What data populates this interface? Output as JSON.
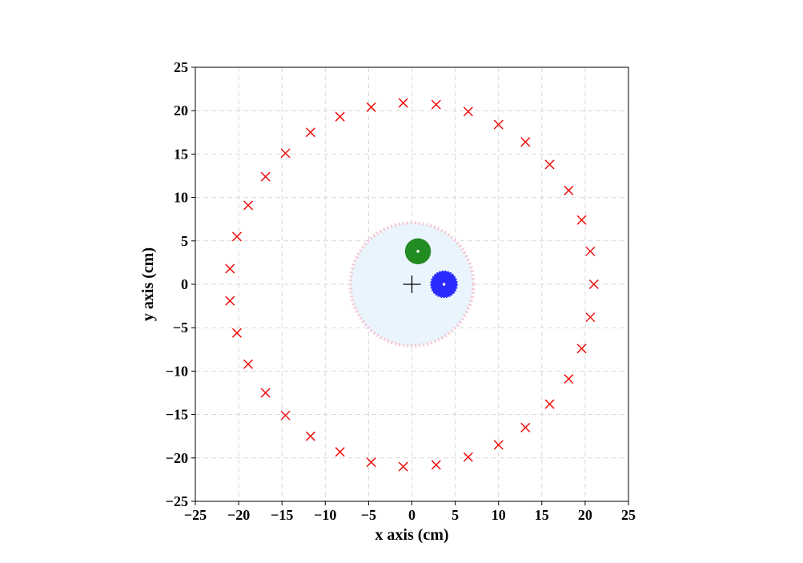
{
  "chart_data": {
    "type": "scatter",
    "title": "",
    "xlabel": "x axis (cm)",
    "ylabel": "y axis (cm)",
    "xlim": [
      -25,
      25
    ],
    "ylim": [
      -25,
      25
    ],
    "xticks": [
      -25,
      -20,
      -15,
      -10,
      -5,
      0,
      5,
      10,
      15,
      20,
      25
    ],
    "yticks": [
      -25,
      -20,
      -15,
      -10,
      -5,
      0,
      5,
      10,
      15,
      20,
      25
    ],
    "grid": true,
    "colors": {
      "markers": "#ee0000",
      "boundary_fill": "#eaf4fd",
      "boundary_edge": "#f7c6d0",
      "green_disc": "#228b22",
      "blue_disc": "#2a2aff",
      "center_marker": "#000000",
      "grid": "#d9d9d9"
    },
    "marker_points": [
      {
        "x": 21.0,
        "y": 0.0
      },
      {
        "x": 20.6,
        "y": 3.8
      },
      {
        "x": 19.6,
        "y": 7.4
      },
      {
        "x": 18.1,
        "y": 10.8
      },
      {
        "x": 15.9,
        "y": 13.8
      },
      {
        "x": 13.1,
        "y": 16.4
      },
      {
        "x": 10.0,
        "y": 18.4
      },
      {
        "x": 6.5,
        "y": 19.9
      },
      {
        "x": 2.8,
        "y": 20.7
      },
      {
        "x": -1.0,
        "y": 20.9
      },
      {
        "x": -4.7,
        "y": 20.4
      },
      {
        "x": -8.3,
        "y": 19.3
      },
      {
        "x": -11.7,
        "y": 17.5
      },
      {
        "x": -14.6,
        "y": 15.1
      },
      {
        "x": -16.9,
        "y": 12.4
      },
      {
        "x": -18.9,
        "y": 9.1
      },
      {
        "x": -20.2,
        "y": 5.5
      },
      {
        "x": -21.0,
        "y": 1.8
      },
      {
        "x": -21.0,
        "y": -1.9
      },
      {
        "x": -20.2,
        "y": -5.6
      },
      {
        "x": -18.9,
        "y": -9.2
      },
      {
        "x": -16.9,
        "y": -12.5
      },
      {
        "x": -14.6,
        "y": -15.1
      },
      {
        "x": -11.7,
        "y": -17.5
      },
      {
        "x": -8.3,
        "y": -19.3
      },
      {
        "x": -4.7,
        "y": -20.5
      },
      {
        "x": -1.0,
        "y": -21.0
      },
      {
        "x": 2.8,
        "y": -20.8
      },
      {
        "x": 6.5,
        "y": -19.9
      },
      {
        "x": 10.0,
        "y": -18.5
      },
      {
        "x": 13.1,
        "y": -16.5
      },
      {
        "x": 15.9,
        "y": -13.8
      },
      {
        "x": 18.1,
        "y": -10.9
      },
      {
        "x": 19.6,
        "y": -7.4
      },
      {
        "x": 20.6,
        "y": -3.8
      }
    ],
    "boundary_circle": {
      "cx": 0,
      "cy": 0,
      "r": 7.1
    },
    "green_disc": {
      "x": 0.7,
      "y": 3.8,
      "r": 1.5
    },
    "blue_disc": {
      "x": 3.7,
      "y": 0.0,
      "r": 1.5
    },
    "center_marker": {
      "x": 0,
      "y": 0
    }
  }
}
